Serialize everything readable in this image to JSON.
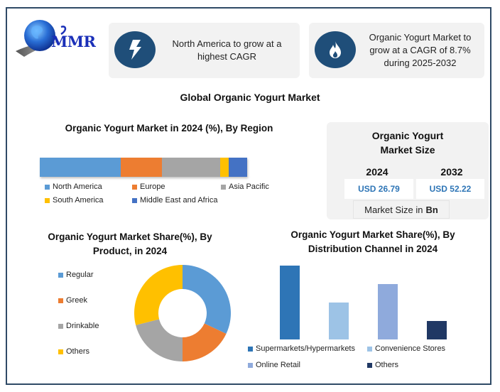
{
  "brand": {
    "logo_text": "MMR"
  },
  "info_cards": [
    {
      "icon": "lightning-bolt-icon",
      "text": "North America to grow at a highest CAGR"
    },
    {
      "icon": "flame-icon",
      "text": "Organic Yogurt Market to grow at a CAGR of 8.7% during 2025-2032"
    }
  ],
  "main_title": "Global Organic Yogurt Market",
  "market_size": {
    "title": "Organic Yogurt Market Size",
    "years": [
      {
        "year": "2024",
        "value": "USD 26.79"
      },
      {
        "year": "2032",
        "value": "USD 52.22"
      }
    ],
    "unit_prefix": "Market Size in",
    "unit_bold": "Bn"
  },
  "colors": {
    "frame": "#2f4a66",
    "icon_bg": "#1f4e79",
    "value_text": "#2e75b6",
    "card_bg": "#f2f2f2"
  },
  "chart_data": [
    {
      "type": "bar",
      "orientation": "horizontal-stacked",
      "title": "Organic Yogurt Market in 2024 (%), By Region",
      "categories": [
        "2024"
      ],
      "series": [
        {
          "name": "North America",
          "values": [
            39
          ],
          "color": "#5b9bd5"
        },
        {
          "name": "Europe",
          "values": [
            20
          ],
          "color": "#ed7d31"
        },
        {
          "name": "Asia Pacific",
          "values": [
            28
          ],
          "color": "#a5a5a5"
        },
        {
          "name": "South America",
          "values": [
            4
          ],
          "color": "#ffc000"
        },
        {
          "name": "Middle East and Africa",
          "values": [
            9
          ],
          "color": "#4472c4"
        }
      ],
      "xlabel": "",
      "ylabel": "",
      "grid": false,
      "legend_position": "bottom"
    },
    {
      "type": "pie",
      "variant": "donut",
      "title": "Organic Yogurt Market Share(%), By Product, in 2024",
      "categories": [
        "Regular",
        "Greek",
        "Drinkable",
        "Others"
      ],
      "values": [
        32,
        18,
        21,
        29
      ],
      "colors": [
        "#5b9bd5",
        "#ed7d31",
        "#a5a5a5",
        "#ffc000"
      ],
      "legend_position": "left"
    },
    {
      "type": "bar",
      "title": "Organic Yogurt Market Share(%), By Distribution Channel in 2024",
      "categories": [
        "Supermarkets/Hypermarkets",
        "Convenience Stores",
        "Online Retail",
        "Others"
      ],
      "values": [
        40,
        20,
        30,
        10
      ],
      "colors": [
        "#2e75b6",
        "#9dc3e6",
        "#8faadc",
        "#203864"
      ],
      "xlabel": "",
      "ylabel": "",
      "grid": false,
      "axes_visible": false,
      "legend_position": "bottom"
    }
  ]
}
